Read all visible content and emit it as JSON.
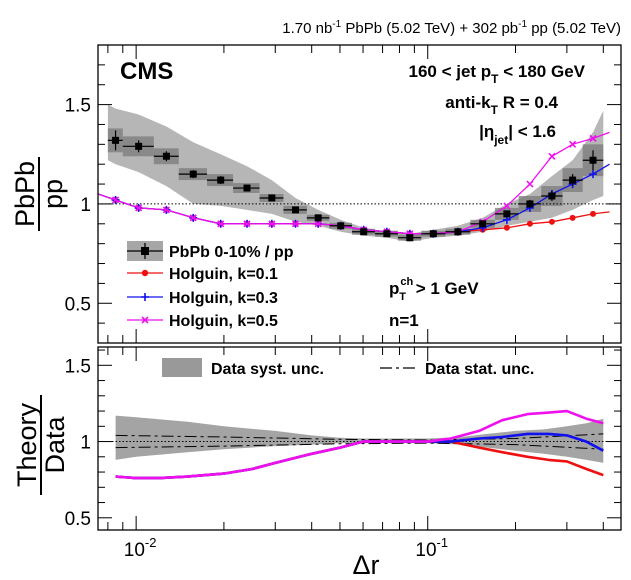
{
  "chart_data": [
    {
      "panel": "top",
      "type": "scatter",
      "header": "1.70 nb⁻¹ PbPb (5.02 TeV) + 302 pb⁻¹ pp (5.02 TeV)",
      "header_parts": {
        "a": "1.70 nb",
        "a_sup": "-1",
        "b": " PbPb (5.02 TeV) + 302 pb",
        "b_sup": "-1",
        "c": " pp (5.02 TeV)"
      },
      "experiment": "CMS",
      "annotations": {
        "ptbin": {
          "pre": "160 < jet p",
          "sub": "T",
          "post": " < 180 GeV"
        },
        "algo": {
          "pre": "anti-k",
          "sub": "T",
          "post": " R = 0.4"
        },
        "eta": {
          "pre": "|η",
          "sub": "jet",
          "post": "| < 1.6"
        },
        "trackpt": {
          "pre": "p",
          "sup": "ch",
          "sub": "T",
          "post": " > 1 GeV"
        },
        "n": "n=1"
      },
      "ylabel": {
        "num": "PbPb",
        "den": "pp"
      },
      "xscale": "log",
      "xlim": [
        0.0074,
        0.46
      ],
      "ylim": [
        0.3,
        1.8
      ],
      "yticks": [
        0.5,
        1,
        1.5
      ],
      "ytick_labels": [
        "0.5",
        "1",
        "1.5"
      ],
      "reference_line": 1.0,
      "bin_edges": [
        0.008,
        0.009,
        0.0115,
        0.014,
        0.0175,
        0.0215,
        0.0265,
        0.032,
        0.0385,
        0.046,
        0.055,
        0.066,
        0.079,
        0.095,
        0.115,
        0.14,
        0.17,
        0.205,
        0.245,
        0.29,
        0.34,
        0.4
      ],
      "series": [
        {
          "name": "PbPb 0-10% / pp",
          "color": "#000000",
          "marker": "square",
          "x": [
            0.0085,
            0.0102,
            0.0127,
            0.0157,
            0.0195,
            0.024,
            0.0292,
            0.0352,
            0.0421,
            0.0503,
            0.0603,
            0.0724,
            0.0868,
            0.1045,
            0.1269,
            0.1543,
            0.1868,
            0.2241,
            0.2666,
            0.3139,
            0.3688
          ],
          "values": [
            1.32,
            1.29,
            1.24,
            1.15,
            1.12,
            1.08,
            1.03,
            0.97,
            0.93,
            0.89,
            0.86,
            0.85,
            0.83,
            0.85,
            0.86,
            0.9,
            0.95,
            1.0,
            1.04,
            1.12,
            1.22
          ],
          "stat_err": [
            0.05,
            0.03,
            0.025,
            0.02,
            0.02,
            0.015,
            0.015,
            0.012,
            0.012,
            0.01,
            0.01,
            0.01,
            0.01,
            0.01,
            0.01,
            0.012,
            0.015,
            0.02,
            0.025,
            0.03,
            0.05
          ],
          "syst_box": [
            0.06,
            0.05,
            0.04,
            0.03,
            0.03,
            0.025,
            0.02,
            0.02,
            0.015,
            0.015,
            0.015,
            0.015,
            0.015,
            0.015,
            0.015,
            0.02,
            0.03,
            0.04,
            0.05,
            0.06,
            0.08
          ],
          "band_x": [
            0.008,
            0.0085,
            0.0102,
            0.0127,
            0.0157,
            0.0195,
            0.024,
            0.0292,
            0.0352,
            0.0421,
            0.0503,
            0.0603,
            0.0724,
            0.0868,
            0.1045,
            0.1269,
            0.1543,
            0.1868,
            0.2241,
            0.2666,
            0.3139,
            0.3688,
            0.4
          ],
          "band_hi": [
            1.5,
            1.48,
            1.45,
            1.39,
            1.31,
            1.25,
            1.19,
            1.12,
            1.03,
            0.97,
            0.92,
            0.88,
            0.86,
            0.85,
            0.87,
            0.89,
            0.93,
            1.0,
            1.05,
            1.14,
            1.22,
            1.36,
            1.47
          ],
          "band_lo": [
            1.22,
            1.2,
            1.16,
            1.09,
            1.0,
            0.99,
            0.97,
            0.95,
            0.91,
            0.89,
            0.86,
            0.84,
            0.83,
            0.81,
            0.83,
            0.84,
            0.86,
            0.89,
            0.91,
            0.93,
            0.97,
            1.02,
            1.04
          ]
        },
        {
          "name": "Holguin, k=0.1",
          "color": "#ee1111",
          "marker": "circle",
          "x": [
            0.0074,
            0.0085,
            0.0102,
            0.0127,
            0.0157,
            0.0195,
            0.024,
            0.0292,
            0.0352,
            0.0421,
            0.0503,
            0.0603,
            0.0724,
            0.0868,
            0.1045,
            0.1269,
            0.1543,
            0.1868,
            0.2241,
            0.2666,
            0.3139,
            0.3688,
            0.42
          ],
          "values": [
            1.05,
            1.02,
            0.98,
            0.97,
            0.93,
            0.9,
            0.9,
            0.9,
            0.9,
            0.9,
            0.89,
            0.87,
            0.86,
            0.85,
            0.85,
            0.86,
            0.87,
            0.88,
            0.9,
            0.91,
            0.93,
            0.95,
            0.96
          ]
        },
        {
          "name": "Holguin, k=0.3",
          "color": "#1111ee",
          "marker": "cross",
          "x": [
            0.0074,
            0.0085,
            0.0102,
            0.0127,
            0.0157,
            0.0195,
            0.024,
            0.0292,
            0.0352,
            0.0421,
            0.0503,
            0.0603,
            0.0724,
            0.0868,
            0.1045,
            0.1269,
            0.1543,
            0.1868,
            0.2241,
            0.2666,
            0.3139,
            0.3688,
            0.42
          ],
          "values": [
            1.05,
            1.02,
            0.98,
            0.97,
            0.93,
            0.9,
            0.9,
            0.9,
            0.9,
            0.9,
            0.89,
            0.87,
            0.86,
            0.85,
            0.85,
            0.86,
            0.88,
            0.92,
            0.98,
            1.05,
            1.1,
            1.15,
            1.2
          ]
        },
        {
          "name": "Holguin, k=0.5",
          "color": "#ee11ee",
          "marker": "x",
          "x": [
            0.0074,
            0.0085,
            0.0102,
            0.0127,
            0.0157,
            0.0195,
            0.024,
            0.0292,
            0.0352,
            0.0421,
            0.0503,
            0.0603,
            0.0724,
            0.0868,
            0.1045,
            0.1269,
            0.1543,
            0.1868,
            0.2241,
            0.2666,
            0.3139,
            0.3688,
            0.42
          ],
          "values": [
            1.05,
            1.02,
            0.98,
            0.97,
            0.93,
            0.9,
            0.9,
            0.9,
            0.9,
            0.9,
            0.89,
            0.87,
            0.86,
            0.85,
            0.85,
            0.86,
            0.91,
            0.99,
            1.1,
            1.24,
            1.3,
            1.33,
            1.36
          ]
        }
      ]
    },
    {
      "panel": "bottom",
      "type": "line",
      "ylabel": {
        "num": "Theory",
        "den": "Data"
      },
      "xlabel": "Δr",
      "xscale": "log",
      "xlim": [
        0.0074,
        0.46
      ],
      "ylim": [
        0.42,
        1.62
      ],
      "yticks": [
        0.5,
        1,
        1.5
      ],
      "ytick_labels": [
        "0.5",
        "1",
        "1.5"
      ],
      "xtick_labels": [
        "10⁻²",
        "10⁻¹"
      ],
      "xtick_parts": [
        {
          "base": "10",
          "exp": "-2"
        },
        {
          "base": "10",
          "exp": "-1"
        }
      ],
      "reference_line": 1.0,
      "legend": {
        "syst": "Data syst. unc.",
        "stat": "Data stat. unc."
      },
      "syst_band": {
        "x": [
          0.0085,
          0.01,
          0.015,
          0.02,
          0.03,
          0.04,
          0.05,
          0.06,
          0.08,
          0.1,
          0.13,
          0.16,
          0.2,
          0.25,
          0.3,
          0.35,
          0.4
        ],
        "hi": [
          1.17,
          1.16,
          1.13,
          1.1,
          1.07,
          1.04,
          1.025,
          1.02,
          1.02,
          1.02,
          1.03,
          1.05,
          1.07,
          1.08,
          1.1,
          1.12,
          1.15
        ],
        "lo": [
          0.88,
          0.9,
          0.93,
          0.95,
          0.97,
          0.98,
          0.99,
          0.99,
          0.99,
          0.99,
          0.98,
          0.96,
          0.94,
          0.92,
          0.9,
          0.88,
          0.86
        ]
      },
      "stat_band": {
        "x": [
          0.0085,
          0.02,
          0.05,
          0.1,
          0.2,
          0.4
        ],
        "hi": [
          1.04,
          1.03,
          1.015,
          1.01,
          1.02,
          1.05
        ],
        "lo": [
          0.96,
          0.97,
          0.985,
          0.99,
          0.98,
          0.95
        ]
      },
      "series": [
        {
          "name": "Holguin, k=0.1",
          "color": "#ee1111",
          "x": [
            0.0085,
            0.01,
            0.012,
            0.015,
            0.02,
            0.025,
            0.03,
            0.04,
            0.05,
            0.06,
            0.08,
            0.1,
            0.12,
            0.15,
            0.18,
            0.22,
            0.26,
            0.3,
            0.35,
            0.4
          ],
          "values": [
            0.77,
            0.76,
            0.76,
            0.77,
            0.79,
            0.82,
            0.86,
            0.92,
            0.96,
            1.0,
            1.0,
            1.0,
            1.0,
            0.96,
            0.93,
            0.9,
            0.88,
            0.87,
            0.82,
            0.78
          ]
        },
        {
          "name": "Holguin, k=0.3",
          "color": "#1111ee",
          "x": [
            0.0085,
            0.01,
            0.012,
            0.015,
            0.02,
            0.025,
            0.03,
            0.04,
            0.05,
            0.06,
            0.08,
            0.1,
            0.12,
            0.15,
            0.18,
            0.22,
            0.26,
            0.3,
            0.35,
            0.4
          ],
          "values": [
            0.77,
            0.76,
            0.76,
            0.77,
            0.79,
            0.82,
            0.86,
            0.92,
            0.96,
            1.0,
            1.0,
            1.0,
            1.0,
            1.02,
            1.03,
            1.05,
            1.05,
            1.04,
            1.0,
            0.94
          ]
        },
        {
          "name": "Holguin, k=0.5",
          "color": "#ee11ee",
          "x": [
            0.0085,
            0.01,
            0.012,
            0.015,
            0.02,
            0.025,
            0.03,
            0.04,
            0.05,
            0.06,
            0.08,
            0.1,
            0.12,
            0.15,
            0.18,
            0.22,
            0.26,
            0.3,
            0.35,
            0.4
          ],
          "values": [
            0.77,
            0.76,
            0.76,
            0.77,
            0.79,
            0.82,
            0.86,
            0.92,
            0.96,
            1.0,
            1.0,
            1.0,
            1.02,
            1.07,
            1.14,
            1.18,
            1.19,
            1.2,
            1.15,
            1.12
          ]
        }
      ]
    }
  ]
}
